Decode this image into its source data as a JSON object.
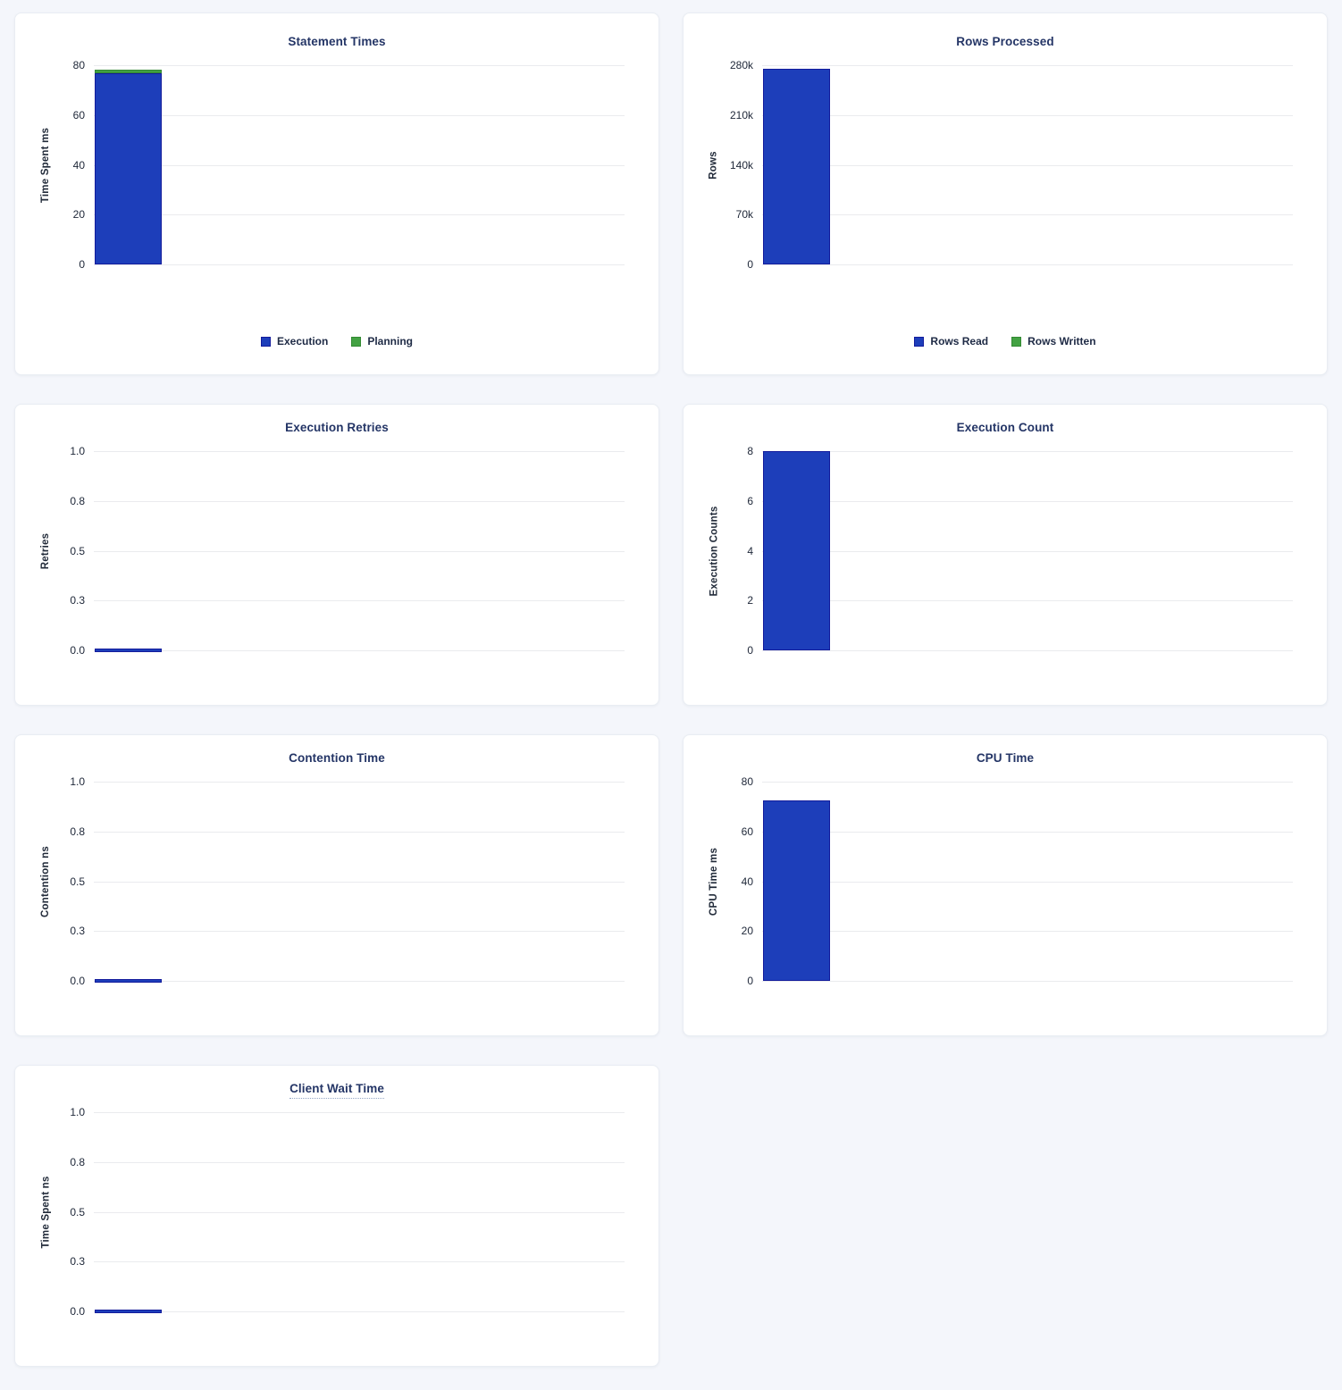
{
  "page": {
    "background_color": "#f4f6fb",
    "card_color": "#ffffff"
  },
  "colors": {
    "bar_blue": "#1d3eba",
    "bar_blue_border": "#131c9c",
    "bar_green": "#43a243",
    "bar_green_border": "#338a33",
    "title_navy": "#243566",
    "grid_gray": "#eaebee"
  },
  "chart_data": [
    {
      "type": "bar",
      "title": "Statement Times",
      "ylabel": "Time Spent ms",
      "yticks": [
        "0",
        "20",
        "40",
        "60",
        "80"
      ],
      "ymax": 80,
      "stacked": true,
      "series": [
        {
          "name": "Execution",
          "color": "bar_blue",
          "border": "bar_blue_border",
          "value": 76.8
        },
        {
          "name": "Planning",
          "color": "bar_green",
          "border": "bar_green_border",
          "value": 1.4
        }
      ],
      "legend": [
        {
          "label": "Execution",
          "color": "bar_blue",
          "border": "bar_blue_border"
        },
        {
          "label": "Planning",
          "color": "bar_green",
          "border": "bar_green_border"
        }
      ],
      "grid": true,
      "legend_position": "bottom-center"
    },
    {
      "type": "bar",
      "title": "Rows Processed",
      "ylabel": "Rows",
      "yticks": [
        "0",
        "70k",
        "140k",
        "210k",
        "280k"
      ],
      "ymax": 280000,
      "stacked": true,
      "series": [
        {
          "name": "Rows Read",
          "color": "bar_blue",
          "border": "bar_blue_border",
          "value": 275000
        },
        {
          "name": "Rows Written",
          "color": "bar_green",
          "border": "bar_green_border",
          "value": 0
        }
      ],
      "legend": [
        {
          "label": "Rows Read",
          "color": "bar_blue",
          "border": "bar_blue_border"
        },
        {
          "label": "Rows Written",
          "color": "bar_green",
          "border": "bar_green_border"
        }
      ],
      "grid": true,
      "legend_position": "bottom-center"
    },
    {
      "type": "bar",
      "title": "Execution Retries",
      "ylabel": "Retries",
      "yticks": [
        "0.0",
        "0.3",
        "0.5",
        "0.8",
        "1.0"
      ],
      "ymax": 1,
      "stacked": false,
      "series": [
        {
          "name": "Retries",
          "color": "bar_blue",
          "border": "bar_blue_border",
          "value": 0
        }
      ],
      "legend": null,
      "grid": true,
      "legend_position": null
    },
    {
      "type": "bar",
      "title": "Execution Count",
      "ylabel": "Execution Counts",
      "yticks": [
        "0",
        "2",
        "4",
        "6",
        "8"
      ],
      "ymax": 8,
      "stacked": false,
      "series": [
        {
          "name": "Execution Count",
          "color": "bar_blue",
          "border": "bar_blue_border",
          "value": 8
        }
      ],
      "legend": null,
      "grid": true,
      "legend_position": null
    },
    {
      "type": "bar",
      "title": "Contention Time",
      "ylabel": "Contention ns",
      "yticks": [
        "0.0",
        "0.3",
        "0.5",
        "0.8",
        "1.0"
      ],
      "ymax": 1,
      "stacked": false,
      "series": [
        {
          "name": "Contention",
          "color": "bar_blue",
          "border": "bar_blue_border",
          "value": 0
        }
      ],
      "legend": null,
      "grid": true,
      "legend_position": null
    },
    {
      "type": "bar",
      "title": "CPU Time",
      "ylabel": "CPU Time ms",
      "yticks": [
        "0",
        "20",
        "40",
        "60",
        "80"
      ],
      "ymax": 80,
      "stacked": false,
      "series": [
        {
          "name": "CPU Time",
          "color": "bar_blue",
          "border": "bar_blue_border",
          "value": 72.5
        }
      ],
      "legend": null,
      "grid": true,
      "legend_position": null
    },
    {
      "type": "bar",
      "title": "Client Wait Time",
      "title_underlined": true,
      "ylabel": "Time Spent ns",
      "yticks": [
        "0.0",
        "0.3",
        "0.5",
        "0.8",
        "1.0"
      ],
      "ymax": 1,
      "stacked": false,
      "series": [
        {
          "name": "Client Wait",
          "color": "bar_blue",
          "border": "bar_blue_border",
          "value": 0
        }
      ],
      "legend": null,
      "grid": true,
      "legend_position": null
    }
  ]
}
